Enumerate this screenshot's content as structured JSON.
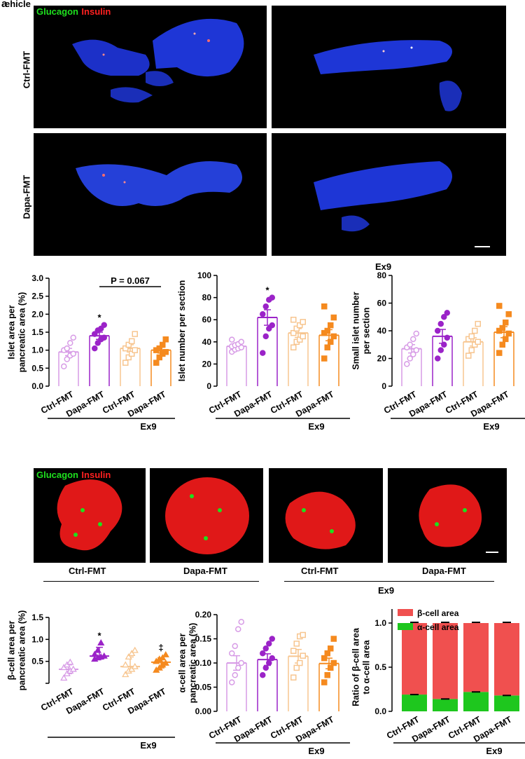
{
  "panel_a": {
    "letter": "a",
    "corner_text": "ehicle",
    "legend_glucagon": "Glucagon",
    "legend_insulin": "Insulin",
    "row_labels": [
      "Ctrl-FMT",
      "Dapa-FMT"
    ],
    "column_label": "Ex9"
  },
  "panel_b": {
    "legend_glucagon": "Glucagon",
    "legend_insulin": "Insulin",
    "image_labels": [
      "Ctrl-FMT",
      "Dapa-FMT",
      "Ctrl-FMT",
      "Dapa-FMT"
    ],
    "group_label": "Ex9"
  },
  "colors": {
    "ctrl": "#d79be6",
    "dapa": "#9b23c8",
    "ex9_ctrl": "#f7c58f",
    "ex9_dapa": "#f58a1f",
    "beta": "#f0504f",
    "alpha": "#1ec71e"
  },
  "chart_data": [
    {
      "type": "scatter",
      "ylabel": "Islet area per pancreatic area (%)",
      "ylabel_lines": [
        "Islet area per",
        "pancreatic area (%)"
      ],
      "ylim": [
        0,
        3.0
      ],
      "yticks": [
        "0.0",
        "0.5",
        "1.0",
        "1.5",
        "2.0",
        "2.5",
        "3.0"
      ],
      "categories": [
        "Ctrl-FMT",
        "Dapa-FMT",
        "Ctrl-FMT",
        "Dapa-FMT"
      ],
      "group_label": "Ex9",
      "means": [
        0.95,
        1.4,
        1.05,
        1.0
      ],
      "sems": [
        0.1,
        0.1,
        0.1,
        0.08
      ],
      "points": [
        [
          0.55,
          0.75,
          0.85,
          0.9,
          1.0,
          1.05,
          1.2,
          1.35
        ],
        [
          1.05,
          1.2,
          1.3,
          1.35,
          1.45,
          1.55,
          1.6,
          1.7
        ],
        [
          0.65,
          0.8,
          0.9,
          1.0,
          1.05,
          1.15,
          1.25,
          1.45
        ],
        [
          0.65,
          0.8,
          0.9,
          0.95,
          1.0,
          1.05,
          1.15,
          1.3
        ]
      ],
      "stars": [
        "",
        "*",
        "",
        ""
      ],
      "annotation": "P = 0.067",
      "bar_heights": true
    },
    {
      "type": "scatter",
      "ylabel": "Islet number per section",
      "ylabel_lines": [
        "Islet number per section"
      ],
      "ylim": [
        0,
        100
      ],
      "yticks": [
        "0",
        "20",
        "40",
        "60",
        "80",
        "100"
      ],
      "categories": [
        "Ctrl-FMT",
        "Dapa-FMT",
        "Ctrl-FMT",
        "Dapa-FMT"
      ],
      "group_label": "Ex9",
      "means": [
        36,
        62,
        48,
        46
      ],
      "sems": [
        2,
        7,
        4,
        5
      ],
      "points": [
        [
          31,
          33,
          34,
          35,
          36,
          37,
          38,
          40,
          42
        ],
        [
          30,
          45,
          52,
          55,
          65,
          72,
          78,
          80
        ],
        [
          35,
          40,
          42,
          45,
          48,
          52,
          55,
          58,
          60
        ],
        [
          25,
          35,
          40,
          45,
          48,
          50,
          55,
          62,
          72
        ]
      ],
      "stars": [
        "",
        "*",
        "",
        ""
      ]
    },
    {
      "type": "scatter",
      "ylabel": "Small islet number per section",
      "ylabel_lines": [
        "Small islet number",
        "per section"
      ],
      "ylim": [
        0,
        80
      ],
      "yticks": [
        "0",
        "20",
        "40",
        "60",
        "80"
      ],
      "categories": [
        "Ctrl-FMT",
        "Dapa-FMT",
        "Ctrl-FMT",
        "Dapa-FMT"
      ],
      "group_label": "Ex9",
      "means": [
        27,
        36,
        32,
        39
      ],
      "sems": [
        3,
        5,
        3,
        4
      ],
      "points": [
        [
          16,
          20,
          23,
          26,
          28,
          30,
          34,
          38
        ],
        [
          20,
          26,
          30,
          35,
          40,
          45,
          50,
          53
        ],
        [
          22,
          26,
          30,
          32,
          34,
          36,
          40,
          45
        ],
        [
          24,
          30,
          34,
          38,
          40,
          42,
          46,
          52,
          58
        ]
      ],
      "stars": [
        "",
        "",
        "",
        ""
      ]
    },
    {
      "type": "scatter",
      "ylabel": "β-cell area per pancreatic area (%)",
      "ylabel_lines": [
        "β-cell area per",
        "pancreatic area (%)"
      ],
      "ylim": [
        0,
        1.5
      ],
      "yticks": [
        "",
        "0.5",
        "1.0",
        "1.5"
      ],
      "categories": [
        "Ctrl-FMT",
        "Dapa-FMT",
        "Ctrl-FMT",
        "Dapa-FMT"
      ],
      "group_label": "Ex9",
      "medians": [
        0.32,
        0.62,
        0.38,
        0.48
      ],
      "iqr": [
        [
          0.22,
          0.42
        ],
        [
          0.55,
          0.82
        ],
        [
          0.28,
          0.6
        ],
        [
          0.35,
          0.58
        ]
      ],
      "points": [
        [
          0.12,
          0.22,
          0.28,
          0.32,
          0.36,
          0.42,
          0.48
        ],
        [
          0.55,
          0.58,
          0.6,
          0.62,
          0.66,
          0.75,
          0.92
        ],
        [
          0.2,
          0.28,
          0.32,
          0.38,
          0.42,
          0.6,
          0.68,
          0.75
        ],
        [
          0.3,
          0.35,
          0.42,
          0.46,
          0.5,
          0.55,
          0.58,
          0.65
        ]
      ],
      "stars": [
        "",
        "*",
        "",
        "‡"
      ],
      "median_style": true
    },
    {
      "type": "scatter",
      "ylabel": "α-cell area per pancreatic area (%)",
      "ylabel_lines": [
        "α-cell area per",
        "pancreatic area (%)"
      ],
      "ylim": [
        0,
        0.2
      ],
      "yticks": [
        "0.00",
        "0.05",
        "0.10",
        "0.15",
        "0.20"
      ],
      "categories": [
        "Ctrl-FMT",
        "Dapa-FMT",
        "Ctrl-FMT",
        "Dapa-FMT"
      ],
      "group_label": "Ex9",
      "means": [
        0.1,
        0.107,
        0.114,
        0.099
      ],
      "sems": [
        0.015,
        0.012,
        0.014,
        0.011
      ],
      "points": [
        [
          0.06,
          0.075,
          0.09,
          0.1,
          0.12,
          0.135,
          0.17,
          0.185
        ],
        [
          0.075,
          0.09,
          0.1,
          0.11,
          0.12,
          0.13,
          0.14,
          0.15
        ],
        [
          0.07,
          0.09,
          0.1,
          0.115,
          0.125,
          0.14,
          0.155,
          0.158
        ],
        [
          0.06,
          0.075,
          0.09,
          0.1,
          0.11,
          0.12,
          0.13,
          0.15
        ]
      ],
      "stars": [
        "",
        "",
        "",
        ""
      ]
    },
    {
      "type": "bar",
      "stacked": true,
      "ylabel": "Ratio of β-cell area to α-cell area",
      "ylabel_lines": [
        "Ratio of β-cell area",
        "to α-cell area"
      ],
      "ylim": [
        0,
        1.0
      ],
      "yticks": [
        "0.0",
        "0.5",
        "1.0"
      ],
      "categories": [
        "Ctrl-FMT",
        "Dapa-FMT",
        "Ctrl-FMT",
        "Dapa-FMT"
      ],
      "group_label": "Ex9",
      "series": [
        {
          "name": "α-cell area",
          "values": [
            0.19,
            0.14,
            0.22,
            0.18
          ]
        },
        {
          "name": "β-cell area",
          "values": [
            0.81,
            0.86,
            0.78,
            0.82
          ]
        }
      ]
    }
  ]
}
